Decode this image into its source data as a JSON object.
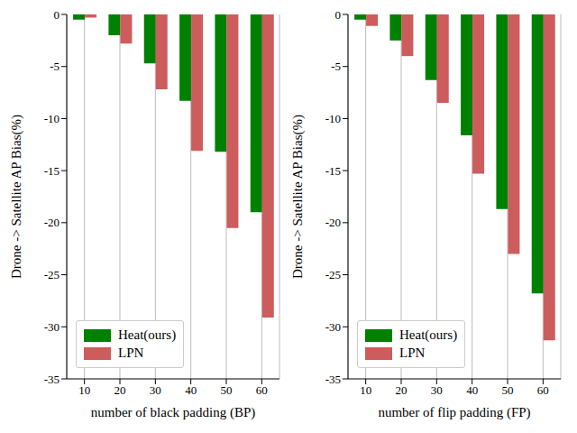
{
  "chart_data": [
    {
      "type": "bar",
      "categories": [
        10,
        20,
        30,
        40,
        50,
        60
      ],
      "x_label": "number of black padding (BP)",
      "y_label": "Drone -> Satellite AP Bias(%)",
      "series": [
        {
          "name": "Heat(ours)",
          "color": "#008000",
          "values": [
            -0.5,
            -2,
            -4.7,
            -8.3,
            -13.2,
            -19
          ]
        },
        {
          "name": "LPN",
          "color": "#cd5c5c",
          "values": [
            -0.3,
            -2.8,
            -7.2,
            -13.1,
            -20.5,
            -29.1
          ]
        }
      ],
      "ylim": [
        -35,
        0
      ],
      "yticks": [
        -35,
        -30,
        -25,
        -20,
        -15,
        -10,
        -5,
        0
      ],
      "grid": true,
      "legend": "lower left"
    },
    {
      "type": "bar",
      "categories": [
        10,
        20,
        30,
        40,
        50,
        60
      ],
      "x_label": "number of flip padding (FP)",
      "y_label": "Drone -> Satellite AP Bias(%)",
      "series": [
        {
          "name": "Heat(ours)",
          "color": "#008000",
          "values": [
            -0.5,
            -2.5,
            -6.3,
            -11.6,
            -18.7,
            -26.8
          ]
        },
        {
          "name": "LPN",
          "color": "#cd5c5c",
          "values": [
            -1.1,
            -4,
            -8.5,
            -15.3,
            -23,
            -31.3
          ]
        }
      ],
      "ylim": [
        -35,
        0
      ],
      "yticks": [
        -35,
        -30,
        -25,
        -20,
        -15,
        -10,
        -5,
        0
      ],
      "grid": true,
      "legend": "lower left"
    }
  ]
}
